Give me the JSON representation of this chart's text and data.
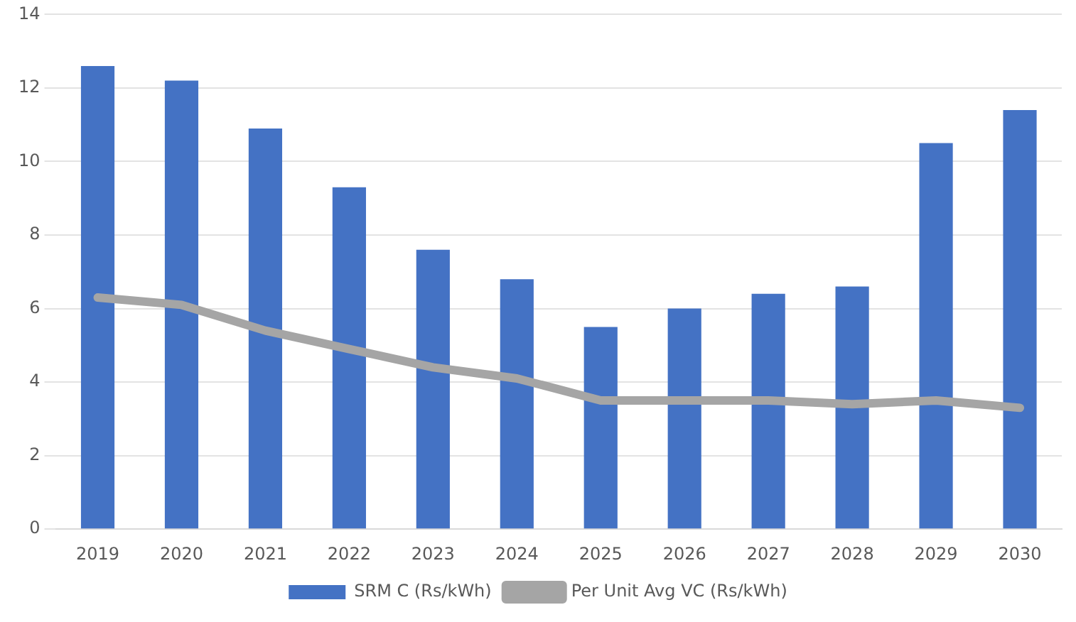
{
  "chart_data": {
    "type": "bar",
    "categories": [
      "2019",
      "2020",
      "2021",
      "2022",
      "2023",
      "2024",
      "2025",
      "2026",
      "2027",
      "2028",
      "2029",
      "2030"
    ],
    "series": [
      {
        "name": "SRM C (Rs/kWh)",
        "color": "#4472c4",
        "values": [
          12.6,
          12.2,
          10.9,
          9.3,
          7.6,
          6.8,
          5.5,
          6.0,
          6.4,
          6.6,
          10.5,
          11.4
        ]
      },
      {
        "name": "Per Unit Avg VC (Rs/kWh)",
        "type": "line",
        "color": "#a5a5a5",
        "values": [
          6.3,
          6.1,
          5.4,
          4.9,
          4.4,
          4.1,
          3.5,
          3.5,
          3.5,
          3.4,
          3.5,
          3.3
        ]
      }
    ],
    "ylim": [
      0,
      14
    ],
    "yticks": [
      0,
      2,
      4,
      6,
      8,
      10,
      12,
      14
    ],
    "grid": "y",
    "legend": "bottom",
    "marker": "none"
  }
}
